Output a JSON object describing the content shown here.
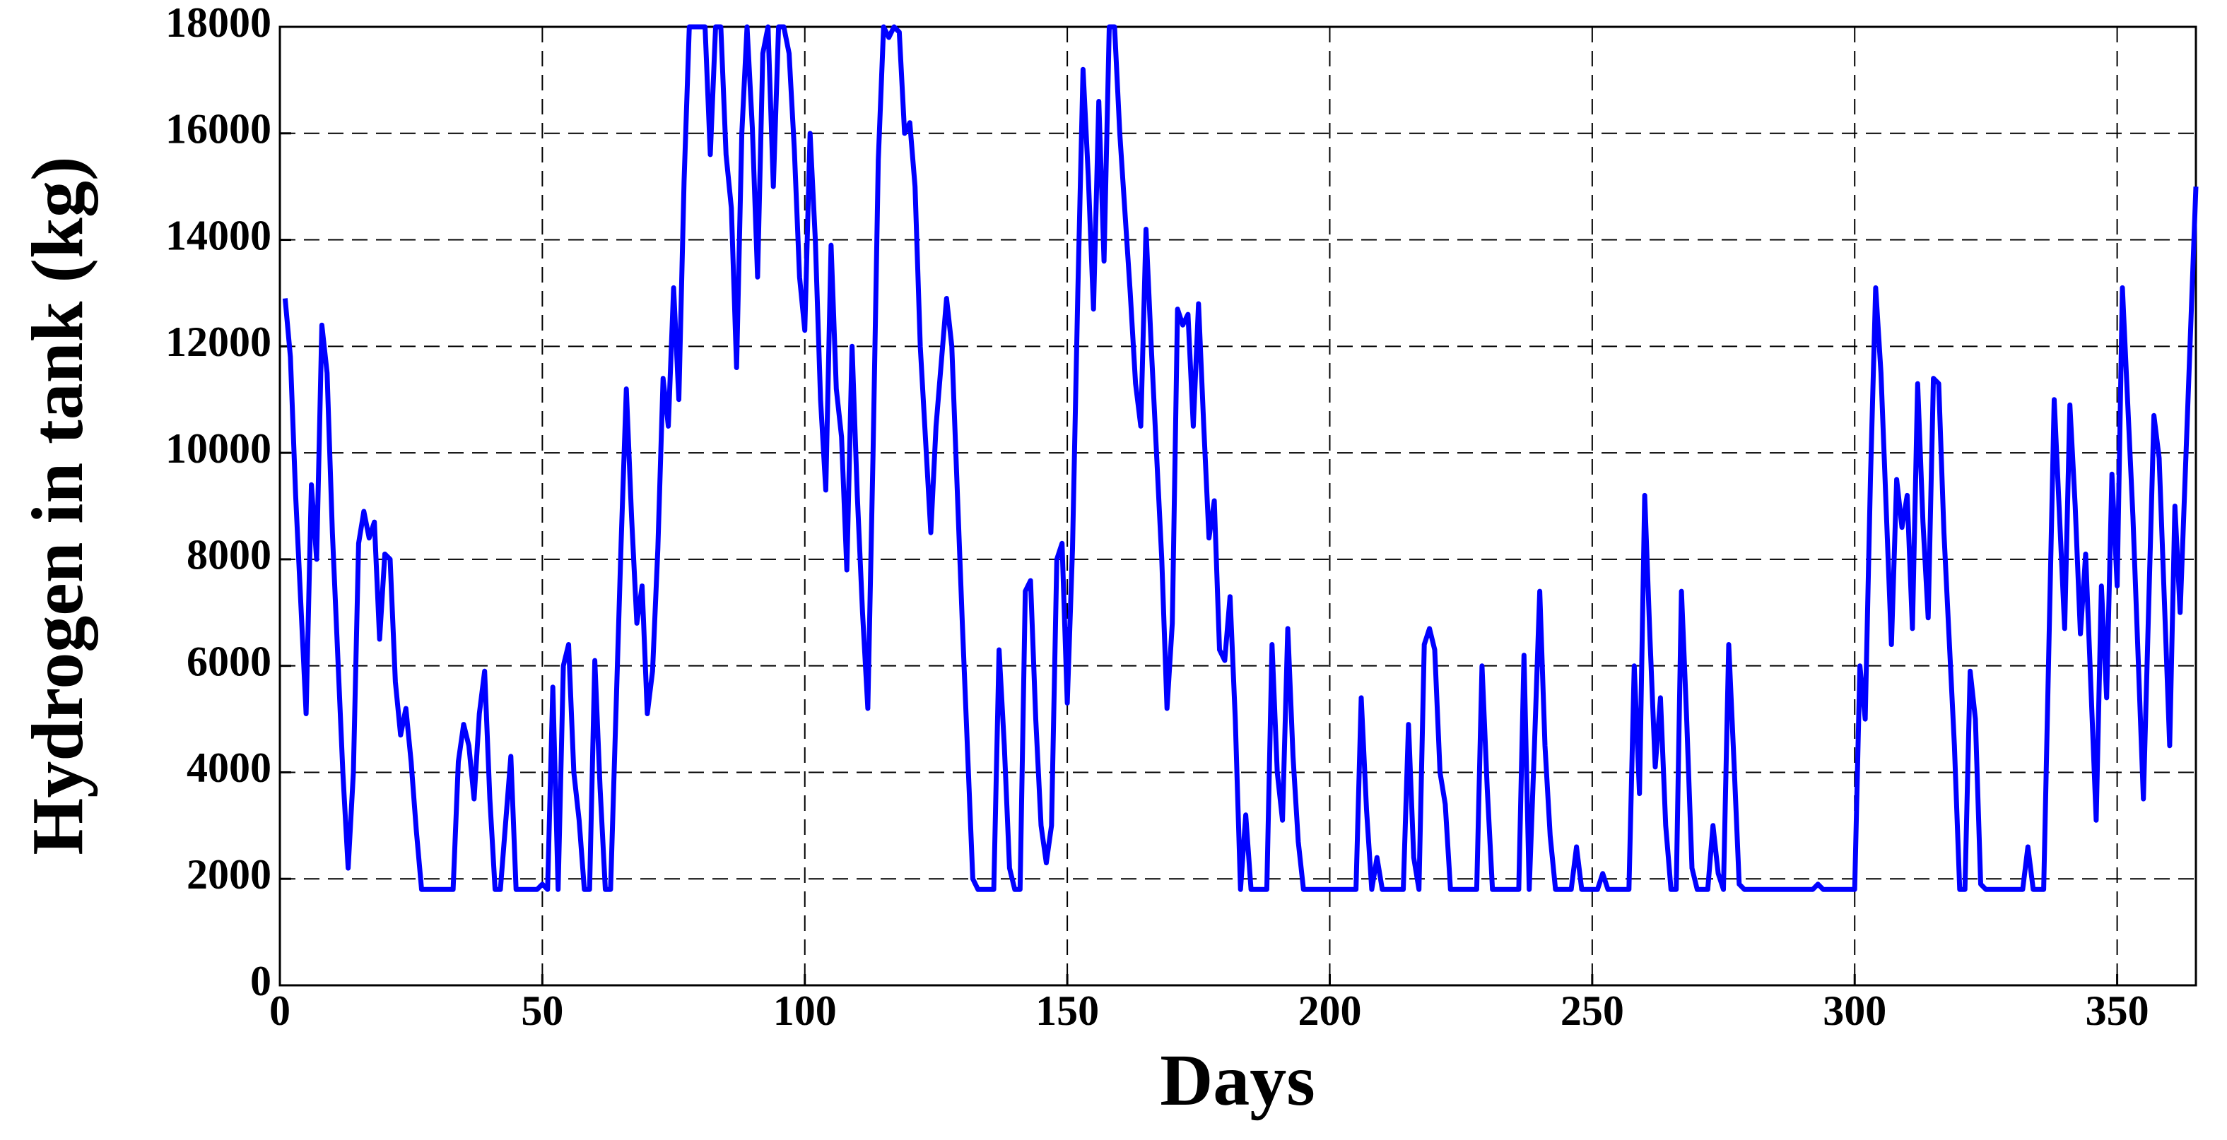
{
  "chart_data": {
    "type": "line",
    "x_label": "Days",
    "y_label": "Hydrogen in tank (kg)",
    "color": "#0000ff",
    "grid": true,
    "xlim": [
      0,
      365
    ],
    "ylim": [
      0,
      18000
    ],
    "xticks": [
      0,
      50,
      100,
      150,
      200,
      250,
      300,
      350
    ],
    "yticks": [
      0,
      2000,
      4000,
      6000,
      8000,
      10000,
      12000,
      14000,
      16000,
      18000
    ],
    "x": [
      1,
      2,
      3,
      5,
      6,
      7,
      8,
      9,
      10,
      12,
      13,
      14,
      15,
      16,
      17,
      18,
      19,
      20,
      21,
      22,
      23,
      24,
      25,
      26,
      27,
      33,
      34,
      35,
      36,
      37,
      38,
      39,
      40,
      41,
      42,
      44,
      45,
      49,
      50,
      51,
      52,
      53,
      54,
      55,
      56,
      57,
      58,
      59,
      60,
      61,
      62,
      63,
      65,
      66,
      67,
      68,
      69,
      70,
      71,
      72,
      73,
      74,
      75,
      76,
      77,
      78,
      81,
      82,
      83,
      84,
      85,
      86,
      87,
      88,
      89,
      90,
      91,
      92,
      93,
      94,
      95,
      96,
      97,
      98,
      99,
      100,
      101,
      102,
      103,
      104,
      105,
      106,
      107,
      108,
      109,
      110,
      111,
      112,
      113,
      114,
      115,
      116,
      117,
      118,
      119,
      120,
      121,
      122,
      124,
      125,
      127,
      128,
      130,
      132,
      133,
      136,
      137,
      138,
      139,
      140,
      141,
      142,
      143,
      144,
      145,
      146,
      147,
      148,
      149,
      150,
      151,
      152,
      153,
      154,
      155,
      156,
      157,
      158,
      159,
      160,
      162,
      163,
      164,
      165,
      166,
      168,
      169,
      170,
      171,
      172,
      173,
      174,
      175,
      176,
      177,
      178,
      179,
      180,
      181,
      182,
      183,
      184,
      185,
      188,
      189,
      190,
      191,
      192,
      193,
      194,
      195,
      205,
      206,
      207,
      208,
      209,
      210,
      214,
      215,
      216,
      217,
      218,
      219,
      220,
      221,
      222,
      223,
      228,
      229,
      230,
      231,
      236,
      237,
      238,
      239,
      240,
      241,
      242,
      243,
      246,
      247,
      248,
      251,
      252,
      253,
      257,
      258,
      259,
      260,
      261,
      262,
      263,
      264,
      265,
      266,
      267,
      268,
      269,
      270,
      272,
      273,
      274,
      275,
      276,
      277,
      278,
      279,
      292,
      293,
      294,
      300,
      301,
      302,
      303,
      304,
      305,
      307,
      308,
      309,
      310,
      311,
      312,
      313,
      314,
      315,
      316,
      317,
      319,
      320,
      321,
      322,
      323,
      324,
      325,
      332,
      333,
      334,
      336,
      338,
      340,
      341,
      342,
      343,
      344,
      346,
      347,
      348,
      349,
      350,
      351,
      353,
      355,
      357,
      358,
      360,
      361,
      362,
      365
    ],
    "values": [
      12900,
      11800,
      9200,
      5100,
      9400,
      8000,
      12400,
      11500,
      8500,
      4000,
      2200,
      4000,
      8300,
      8900,
      8400,
      8700,
      6500,
      8100,
      8000,
      5700,
      4700,
      5200,
      4200,
      2900,
      1800,
      1800,
      4200,
      4900,
      4500,
      3500,
      5100,
      5900,
      3500,
      1800,
      1800,
      4300,
      1800,
      1800,
      1900,
      1800,
      5600,
      1800,
      6000,
      6400,
      4000,
      3100,
      1800,
      1800,
      6100,
      3700,
      1800,
      1800,
      8300,
      11200,
      8800,
      6800,
      7500,
      5100,
      5900,
      8200,
      11400,
      10500,
      13100,
      11000,
      15100,
      18000,
      18000,
      15600,
      18000,
      18000,
      15600,
      14600,
      11600,
      16000,
      18000,
      16100,
      13300,
      17500,
      18000,
      15000,
      18000,
      18000,
      17500,
      15700,
      13300,
      12300,
      16000,
      14000,
      11000,
      9300,
      13900,
      11200,
      10300,
      7800,
      12000,
      9200,
      7000,
      5200,
      10000,
      15500,
      18000,
      17800,
      18000,
      17900,
      16000,
      16200,
      15000,
      12000,
      8500,
      10500,
      12900,
      12000,
      6800,
      2000,
      1800,
      1800,
      6300,
      4500,
      2200,
      1800,
      1800,
      7400,
      7600,
      5000,
      3000,
      2300,
      3000,
      8000,
      8300,
      5300,
      8200,
      13000,
      17200,
      15200,
      12700,
      16600,
      13600,
      18000,
      18000,
      16000,
      13000,
      11300,
      10500,
      14200,
      12000,
      8000,
      5200,
      6800,
      12700,
      12400,
      12600,
      10500,
      12800,
      10500,
      8400,
      9100,
      6300,
      6100,
      7300,
      5000,
      1800,
      3200,
      1800,
      1800,
      6400,
      4000,
      3100,
      6700,
      4300,
      2700,
      1800,
      1800,
      5400,
      3300,
      1800,
      2400,
      1800,
      1800,
      4900,
      2400,
      1800,
      6400,
      6700,
      6300,
      4000,
      3400,
      1800,
      1800,
      6000,
      3700,
      1800,
      1800,
      6200,
      1800,
      4500,
      7400,
      4500,
      2800,
      1800,
      1800,
      2600,
      1800,
      1800,
      2100,
      1800,
      1800,
      6000,
      3600,
      9200,
      6500,
      4100,
      5400,
      3000,
      1800,
      1800,
      7400,
      5000,
      2200,
      1800,
      1800,
      3000,
      2100,
      1800,
      6400,
      4200,
      1900,
      1800,
      1800,
      1900,
      1800,
      1800,
      6000,
      5000,
      9500,
      13100,
      11500,
      6400,
      9500,
      8600,
      9200,
      6700,
      11300,
      8700,
      6900,
      11400,
      11300,
      8500,
      4500,
      1800,
      1800,
      5900,
      5000,
      1900,
      1800,
      1800,
      2600,
      1800,
      1800,
      11000,
      6700,
      10900,
      9000,
      6600,
      8100,
      3100,
      7500,
      5400,
      9600,
      7500,
      13100,
      8800,
      3500,
      10700,
      9900,
      4500,
      9000,
      7000,
      15000
    ]
  }
}
